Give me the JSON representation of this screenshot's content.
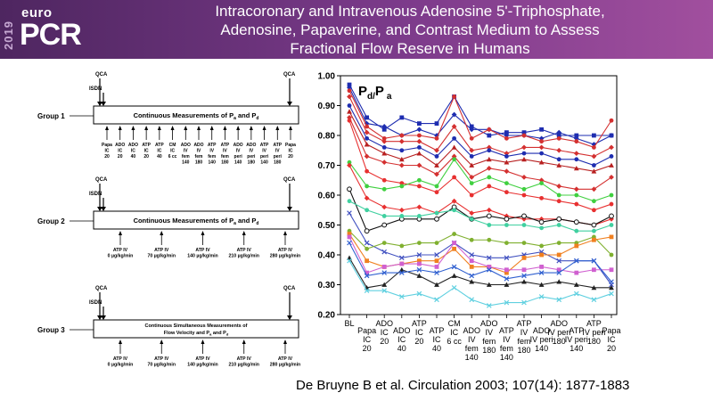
{
  "header": {
    "year": "2019",
    "logo_top": "euro",
    "logo_main": "PCR",
    "title_lines": [
      "Intracoronary and Intravenous Adenosine 5'-Triphosphate,",
      "Adenosine, Papaverine, and Contrast Medium to Assess",
      "Fractional Flow Reserve in Humans"
    ]
  },
  "protocol": {
    "groups": [
      {
        "label": "Group 1",
        "box_text": "Continuous Measurements of P",
        "sub_a": "a",
        "and": " and P",
        "sub_d": "d",
        "qca_left": "QCA",
        "isdn": "ISDN",
        "qca_right": "QCA",
        "steps": [
          [
            "Papa",
            "IC",
            "20"
          ],
          [
            "ADO",
            "IC",
            "20"
          ],
          [
            "ADO",
            "IC",
            "40"
          ],
          [
            "ATP",
            "IC",
            "20"
          ],
          [
            "ATP",
            "IC",
            "40"
          ],
          [
            "CM",
            "IC",
            "6 cc"
          ],
          [
            "ADO",
            "IV",
            "fem",
            "140"
          ],
          [
            "ADO",
            "IV",
            "fem",
            "180"
          ],
          [
            "ATP",
            "IV",
            "fem",
            "140"
          ],
          [
            "ATP",
            "IV",
            "fem",
            "180"
          ],
          [
            "ADO",
            "IV",
            "peri",
            "140"
          ],
          [
            "ADO",
            "IV",
            "peri",
            "180"
          ],
          [
            "ATP",
            "IV",
            "peri",
            "140"
          ],
          [
            "ATP",
            "IV",
            "peri",
            "180"
          ],
          [
            "Papa",
            "IC",
            "20"
          ]
        ]
      },
      {
        "label": "Group 2",
        "box_text": "Continuous Measurements of P",
        "sub_a": "a",
        "and": " and P",
        "sub_d": "d",
        "qca_left": "QCA",
        "isdn": "ISDN",
        "qca_right": "QCA",
        "steps": [
          [
            "ATP IV",
            "0 µg/kg/min"
          ],
          [
            "ATP IV",
            "70 µg/kg/min"
          ],
          [
            "ATP IV",
            "140 µg/kg/min"
          ],
          [
            "ATP IV",
            "210 µg/kg/min"
          ],
          [
            "ATP IV",
            "280 µg/kg/min"
          ]
        ]
      },
      {
        "label": "Group 3",
        "box_line1": "Continuous Simultaneous Measurements of",
        "box_line2": "Flow Velocity and P",
        "sub_a": "a",
        "and": " and P",
        "sub_d": "d",
        "qca_left": "QCA",
        "isdn": "ISDN",
        "qca_right": "QCA",
        "steps": [
          [
            "ATP IV",
            "0 µg/kg/min"
          ],
          [
            "ATP IV",
            "70 µg/kg/min"
          ],
          [
            "ATP IV",
            "140 µg/kg/min"
          ],
          [
            "ATP IV",
            "210 µg/kg/min"
          ],
          [
            "ATP IV",
            "280 µg/kg/min"
          ]
        ]
      }
    ]
  },
  "chart_data": {
    "type": "line",
    "title": "Pd/P a",
    "title_main": "P",
    "title_sub1": "d/",
    "title_p": "P",
    "title_sub2": "a",
    "ylim": [
      0.2,
      1.0
    ],
    "yticks": [
      "0.20",
      "0.30",
      "0.40",
      "0.50",
      "0.60",
      "0.70",
      "0.80",
      "0.90",
      "1.00"
    ],
    "categories_top": [
      [
        "BL"
      ],
      [
        "ADO",
        "IC",
        "20"
      ],
      [
        "ATP",
        "IC",
        "20"
      ],
      [
        "CM",
        "IC",
        "6 cc"
      ],
      [
        "ADO",
        "IV",
        "fem",
        "180"
      ],
      [
        "ATP",
        "IV",
        "fem",
        "180"
      ],
      [
        "ADO",
        "IV peri",
        "180"
      ],
      [
        "ATP",
        "IV peri",
        "180"
      ]
    ],
    "categories_bottom": [
      [
        "Papa",
        "IC",
        "20"
      ],
      [
        "ADO",
        "IC",
        "40"
      ],
      [
        "ATP",
        "IC",
        "40"
      ],
      [
        "ADO",
        "IV",
        "fem",
        "140"
      ],
      [
        "ATP",
        "IV",
        "fem",
        "140"
      ],
      [
        "ADO",
        "IV peri",
        "140"
      ],
      [
        "ATP",
        "IV peri",
        "140"
      ],
      [
        "Papa",
        "IC",
        "20"
      ]
    ],
    "series": [
      {
        "color": "#1e2db0",
        "marker": "square",
        "values": [
          0.97,
          0.86,
          0.82,
          0.86,
          0.84,
          0.84,
          0.93,
          0.83,
          0.8,
          0.81,
          0.81,
          0.82,
          0.8,
          0.8,
          0.8,
          0.8
        ]
      },
      {
        "color": "#1e2db0",
        "marker": "diamond",
        "values": [
          0.96,
          0.84,
          0.83,
          0.8,
          0.82,
          0.8,
          0.87,
          0.82,
          0.82,
          0.8,
          0.8,
          0.79,
          0.81,
          0.79,
          0.77,
          0.8
        ]
      },
      {
        "color": "#d43030",
        "marker": "circle",
        "values": [
          0.95,
          0.83,
          0.79,
          0.8,
          0.8,
          0.79,
          0.93,
          0.79,
          0.82,
          0.79,
          0.8,
          0.78,
          0.79,
          0.78,
          0.76,
          0.85
        ]
      },
      {
        "color": "#d43030",
        "marker": "diamond",
        "values": [
          0.93,
          0.81,
          0.78,
          0.78,
          0.78,
          0.75,
          0.83,
          0.75,
          0.76,
          0.74,
          0.76,
          0.76,
          0.75,
          0.74,
          0.73,
          0.76
        ]
      },
      {
        "color": "#1e2db0",
        "marker": "circle",
        "values": [
          0.9,
          0.79,
          0.76,
          0.75,
          0.76,
          0.73,
          0.79,
          0.73,
          0.75,
          0.73,
          0.74,
          0.74,
          0.72,
          0.72,
          0.7,
          0.73
        ]
      },
      {
        "color": "#b82020",
        "marker": "triangle",
        "values": [
          0.88,
          0.77,
          0.74,
          0.72,
          0.74,
          0.7,
          0.76,
          0.7,
          0.72,
          0.71,
          0.72,
          0.71,
          0.7,
          0.69,
          0.68,
          0.7
        ]
      },
      {
        "color": "#d43030",
        "marker": "diamond",
        "values": [
          0.86,
          0.73,
          0.71,
          0.7,
          0.7,
          0.67,
          0.73,
          0.66,
          0.69,
          0.68,
          0.66,
          0.65,
          0.63,
          0.62,
          0.62,
          0.66
        ]
      },
      {
        "color": "#e83030",
        "marker": "circle",
        "values": [
          0.85,
          0.68,
          0.65,
          0.64,
          0.63,
          0.61,
          0.66,
          0.6,
          0.63,
          0.61,
          0.6,
          0.59,
          0.58,
          0.57,
          0.55,
          0.57
        ]
      },
      {
        "color": "#40d040",
        "marker": "circle",
        "values": [
          0.71,
          0.63,
          0.62,
          0.63,
          0.65,
          0.63,
          0.72,
          0.64,
          0.66,
          0.64,
          0.62,
          0.64,
          0.6,
          0.6,
          0.58,
          0.6
        ]
      },
      {
        "color": "#e83030",
        "marker": "diamond",
        "values": [
          0.7,
          0.59,
          0.56,
          0.55,
          0.56,
          0.54,
          0.58,
          0.54,
          0.55,
          0.53,
          0.52,
          0.52,
          0.52,
          0.51,
          0.5,
          0.52
        ]
      },
      {
        "color": "#111111",
        "marker": "open-circle",
        "values": [
          0.62,
          0.48,
          0.5,
          0.52,
          0.52,
          0.52,
          0.56,
          0.52,
          0.53,
          0.52,
          0.53,
          0.51,
          0.52,
          0.51,
          0.5,
          0.53
        ]
      },
      {
        "color": "#40d0a0",
        "marker": "circle",
        "values": [
          0.58,
          0.55,
          0.53,
          0.53,
          0.53,
          0.54,
          0.55,
          0.52,
          0.5,
          0.5,
          0.5,
          0.49,
          0.5,
          0.48,
          0.48,
          0.5
        ]
      },
      {
        "color": "#4050c0",
        "marker": "x",
        "values": [
          0.54,
          0.44,
          0.41,
          0.39,
          0.4,
          0.4,
          0.44,
          0.4,
          0.39,
          0.39,
          0.4,
          0.41,
          0.38,
          0.38,
          0.38,
          0.3
        ]
      },
      {
        "color": "#80b030",
        "marker": "circle",
        "values": [
          0.48,
          0.42,
          0.44,
          0.43,
          0.44,
          0.44,
          0.47,
          0.45,
          0.45,
          0.44,
          0.44,
          0.43,
          0.44,
          0.44,
          0.46,
          0.4
        ]
      },
      {
        "color": "#f08020",
        "marker": "square",
        "values": [
          0.47,
          0.38,
          0.36,
          0.37,
          0.38,
          0.38,
          0.42,
          0.36,
          0.36,
          0.34,
          0.39,
          0.4,
          0.4,
          0.43,
          0.45,
          0.46
        ]
      },
      {
        "color": "#d060d0",
        "marker": "square",
        "values": [
          0.46,
          0.34,
          0.36,
          0.37,
          0.37,
          0.36,
          0.44,
          0.38,
          0.36,
          0.35,
          0.35,
          0.36,
          0.35,
          0.34,
          0.35,
          0.35
        ]
      },
      {
        "color": "#222222",
        "marker": "triangle",
        "values": [
          0.39,
          0.29,
          0.3,
          0.35,
          0.33,
          0.3,
          0.33,
          0.31,
          0.3,
          0.3,
          0.31,
          0.3,
          0.31,
          0.3,
          0.29,
          0.29
        ]
      },
      {
        "color": "#3060d0",
        "marker": "x",
        "values": [
          0.44,
          0.33,
          0.34,
          0.34,
          0.35,
          0.34,
          0.36,
          0.33,
          0.35,
          0.32,
          0.33,
          0.34,
          0.34,
          0.38,
          0.38,
          0.31
        ]
      },
      {
        "color": "#60d0e0",
        "marker": "x",
        "values": [
          0.38,
          0.28,
          0.28,
          0.26,
          0.27,
          0.25,
          0.29,
          0.25,
          0.23,
          0.24,
          0.24,
          0.26,
          0.25,
          0.27,
          0.25,
          0.27
        ]
      }
    ]
  },
  "citation": "De Bruyne B et al. Circulation 2003; 107(14): 1877-1883"
}
